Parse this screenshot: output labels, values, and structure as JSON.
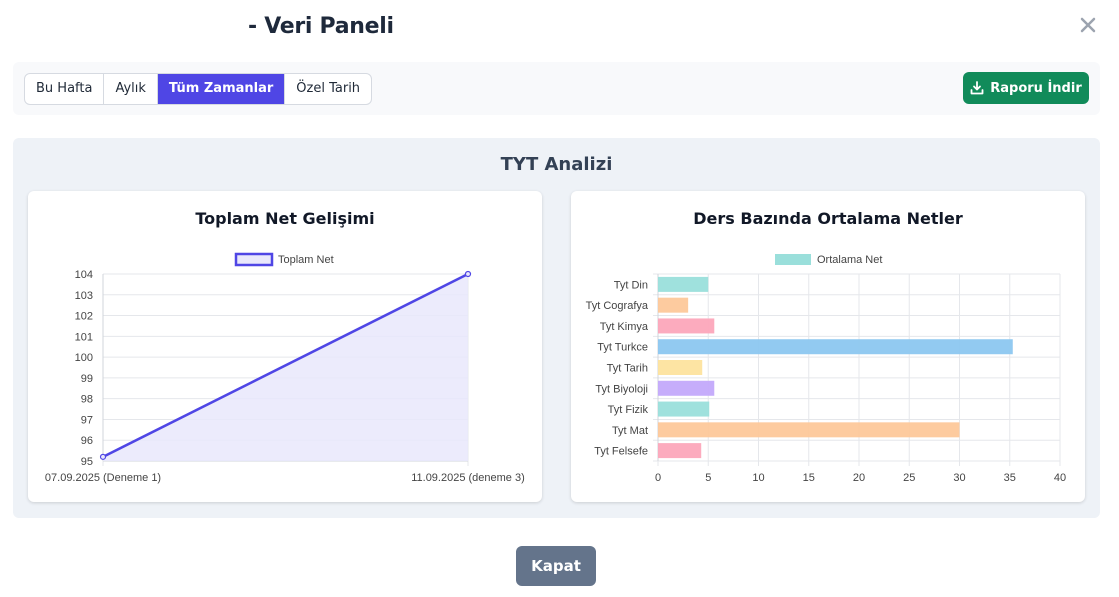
{
  "header": {
    "title": "- Veri Paneli"
  },
  "filters": {
    "tabs": [
      {
        "label": "Bu Hafta",
        "active": false
      },
      {
        "label": "Aylık",
        "active": false
      },
      {
        "label": "Tüm Zamanlar",
        "active": true
      },
      {
        "label": "Özel Tarih",
        "active": false
      }
    ],
    "download_label": "Raporu İndir"
  },
  "panel": {
    "title": "TYT Analizi"
  },
  "charts": {
    "left_title": "Toplam Net Gelişimi",
    "right_title": "Ders Bazında Ortalama Netler"
  },
  "chart_data": [
    {
      "type": "line",
      "title": "Toplam Net Gelişimi",
      "x": [
        "07.09.2025 (Deneme 1)",
        "11.09.2025 (deneme 3)"
      ],
      "series": [
        {
          "name": "Toplam Net",
          "values": [
            95.2,
            104
          ],
          "color": "#4f46e5",
          "fill": "#e9e8fb"
        }
      ],
      "ylim": [
        95,
        104
      ],
      "yticks": [
        95,
        96,
        97,
        98,
        99,
        100,
        101,
        102,
        103,
        104
      ],
      "legend": "top",
      "grid": true
    },
    {
      "type": "bar",
      "orientation": "horizontal",
      "title": "Ders Bazında Ortalama Netler",
      "categories": [
        "Tyt Din",
        "Tyt Cografya",
        "Tyt Kimya",
        "Tyt Turkce",
        "Tyt Tarih",
        "Tyt Biyoloji",
        "Tyt Fizik",
        "Tyt Mat",
        "Tyt Felsefe"
      ],
      "series": [
        {
          "name": "Ortalama Net",
          "values": [
            5,
            3,
            5.6,
            35.3,
            4.4,
            5.6,
            5.1,
            30,
            4.3
          ]
        }
      ],
      "colors": [
        "#9adfdb",
        "#fdc89a",
        "#fca6bb",
        "#8cc7f0",
        "#fde39e",
        "#c3a9fb",
        "#9adfdb",
        "#fdc89a",
        "#fca6bb"
      ],
      "xlim": [
        0,
        40
      ],
      "xticks": [
        0,
        5,
        10,
        15,
        20,
        25,
        30,
        35,
        40
      ],
      "legend": "top",
      "legend_color": "#9adfdb",
      "grid": true
    }
  ],
  "footer": {
    "close_label": "Kapat"
  },
  "icons": {
    "close": "close-icon",
    "download": "download-icon"
  }
}
